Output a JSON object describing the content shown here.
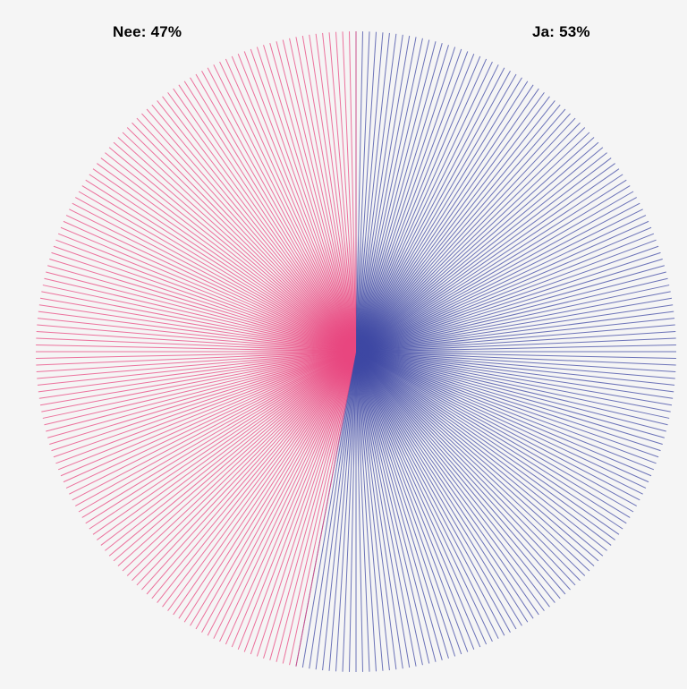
{
  "chart_data": {
    "type": "pie",
    "title": "",
    "slices": [
      {
        "label": "Ja",
        "value": 53,
        "display": "Ja: 53%",
        "color": "#3d47a3"
      },
      {
        "label": "Nee",
        "value": 47,
        "display": "Nee: 47%",
        "color": "#e8467f"
      }
    ],
    "style": "radial-lines",
    "start_direction": "top",
    "order": "clockwise",
    "legend_placement": "top"
  },
  "colors": {
    "background": "#f5f5f5",
    "ja": "#3d47a3",
    "nee": "#e8467f"
  }
}
